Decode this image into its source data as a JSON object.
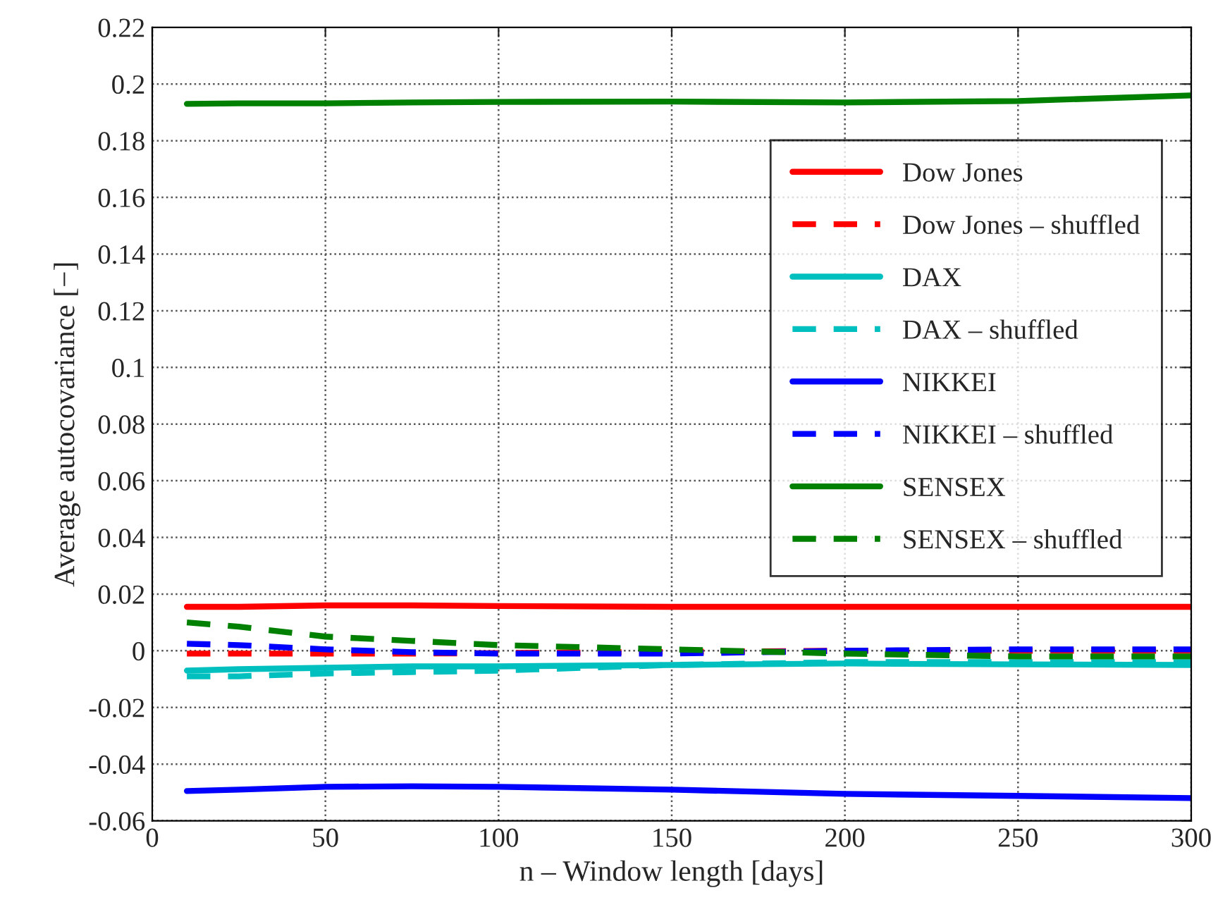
{
  "chart_data": {
    "type": "line",
    "xlabel": "n – Window length [days]",
    "ylabel": "Average autocovariance [−]",
    "x": [
      10,
      25,
      50,
      75,
      100,
      150,
      200,
      250,
      300
    ],
    "xlim": [
      0,
      300
    ],
    "xticks": [
      0,
      50,
      100,
      150,
      200,
      250,
      300
    ],
    "ylim": [
      -0.06,
      0.22
    ],
    "yticks": [
      -0.06,
      -0.04,
      -0.02,
      0,
      0.02,
      0.04,
      0.06,
      0.08,
      0.1,
      0.12,
      0.14,
      0.16,
      0.18,
      0.2,
      0.22
    ],
    "grid": true,
    "legend": "top right",
    "series": [
      {
        "name": "Dow Jones",
        "color": "#ff0000",
        "line_style": "solid",
        "values": [
          0.0155,
          0.0155,
          0.016,
          0.016,
          0.0158,
          0.0155,
          0.0155,
          0.0155,
          0.0155
        ]
      },
      {
        "name": "Dow Jones – shuffled",
        "color": "#ff0000",
        "line_style": "dashed",
        "values": [
          -0.001,
          -0.001,
          -0.001,
          -0.001,
          null,
          null,
          0,
          0,
          0
        ]
      },
      {
        "name": "DAX",
        "color": "#00bfbf",
        "line_style": "solid",
        "values": [
          -0.007,
          -0.0065,
          -0.006,
          -0.0055,
          -0.0055,
          -0.005,
          -0.0045,
          -0.0048,
          -0.005
        ]
      },
      {
        "name": "DAX – shuffled",
        "color": "#00bfbf",
        "line_style": "dashed",
        "values": [
          -0.009,
          -0.009,
          -0.008,
          -0.0075,
          -0.007,
          -0.005,
          -0.004,
          -0.004,
          -0.004
        ]
      },
      {
        "name": "NIKKEI",
        "color": "#0000ff",
        "line_style": "solid",
        "values": [
          -0.0495,
          -0.049,
          -0.048,
          -0.0478,
          -0.048,
          -0.049,
          -0.0505,
          -0.0512,
          -0.052
        ]
      },
      {
        "name": "NIKKEI – shuffled",
        "color": "#0000ff",
        "line_style": "dashed",
        "values": [
          0.0025,
          0.002,
          0.0005,
          -0.0005,
          -0.001,
          -0.001,
          0,
          0.0005,
          0.0005
        ]
      },
      {
        "name": "SENSEX",
        "color": "#008000",
        "line_style": "solid",
        "values": [
          0.193,
          0.1932,
          0.1932,
          0.1935,
          0.1937,
          0.1938,
          0.1935,
          0.194,
          0.196
        ]
      },
      {
        "name": "SENSEX – shuffled",
        "color": "#008000",
        "line_style": "dashed",
        "values": [
          0.01,
          0.0085,
          0.005,
          0.0035,
          0.002,
          0.0005,
          -0.001,
          -0.002,
          -0.002
        ]
      }
    ]
  }
}
